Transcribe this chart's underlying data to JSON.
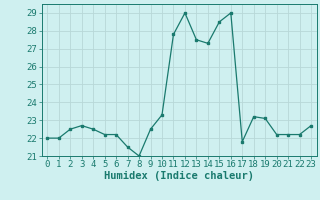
{
  "x": [
    0,
    1,
    2,
    3,
    4,
    5,
    6,
    7,
    8,
    9,
    10,
    11,
    12,
    13,
    14,
    15,
    16,
    17,
    18,
    19,
    20,
    21,
    22,
    23
  ],
  "y": [
    22.0,
    22.0,
    22.5,
    22.7,
    22.5,
    22.2,
    22.2,
    21.5,
    21.0,
    22.5,
    23.3,
    27.8,
    29.0,
    27.5,
    27.3,
    28.5,
    29.0,
    21.8,
    23.2,
    23.1,
    22.2,
    22.2,
    22.2,
    22.7
  ],
  "line_color": "#1a7a6e",
  "bg_color": "#cff0f0",
  "grid_color": "#b8d8d8",
  "xlabel": "Humidex (Indice chaleur)",
  "ylim": [
    21,
    29.5
  ],
  "xlim": [
    -0.5,
    23.5
  ],
  "yticks": [
    21,
    22,
    23,
    24,
    25,
    26,
    27,
    28,
    29
  ],
  "xticks": [
    0,
    1,
    2,
    3,
    4,
    5,
    6,
    7,
    8,
    9,
    10,
    11,
    12,
    13,
    14,
    15,
    16,
    17,
    18,
    19,
    20,
    21,
    22,
    23
  ],
  "tick_color": "#1a7a6e",
  "label_color": "#1a7a6e",
  "font_size": 6.5,
  "xlabel_fontsize": 7.5
}
